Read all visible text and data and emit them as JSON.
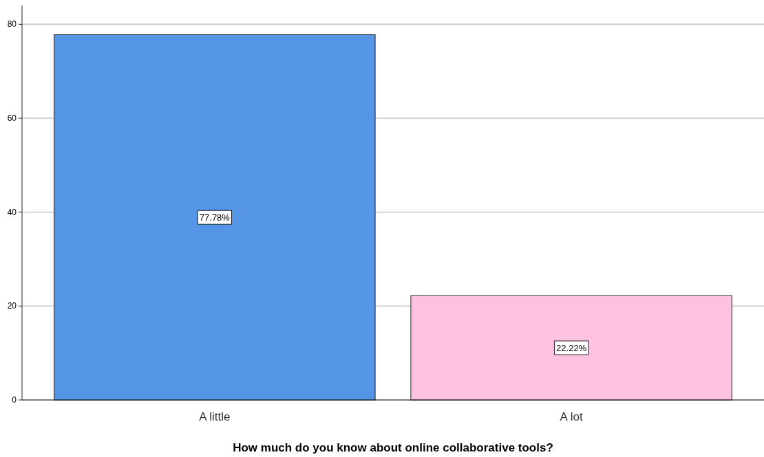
{
  "chart_data": {
    "type": "bar",
    "xlabel": "How much do you know about online collaborative tools?",
    "categories": [
      "A little",
      "A lot"
    ],
    "values": [
      77.78,
      22.22
    ],
    "colors": [
      "#5595e5",
      "#fec2e1"
    ],
    "value_labels": [
      "77.78%",
      "22.22%"
    ],
    "ylim": [
      0,
      84
    ],
    "yticks": [
      0,
      20,
      40,
      60,
      80
    ],
    "grid": "y"
  }
}
